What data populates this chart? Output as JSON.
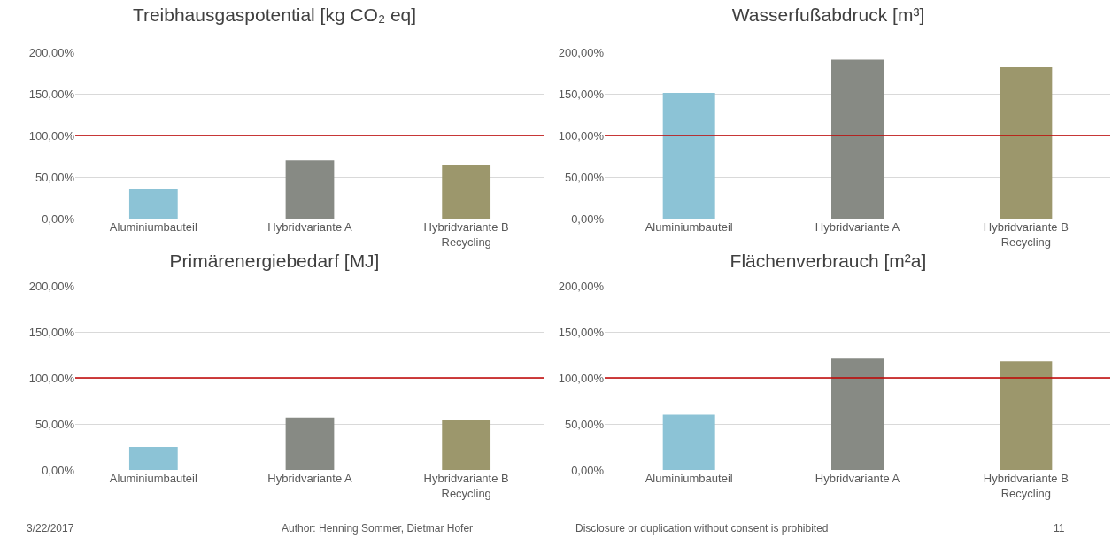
{
  "chart_data": [
    {
      "type": "bar",
      "title": "Treibhausgaspotential [kg CO₂ eq]",
      "categories": [
        "Aluminiumbauteil",
        "Hybridvariante A",
        "Hybridvariante B Recycling"
      ],
      "values": [
        35,
        70,
        65
      ],
      "colors": [
        "#8cc3d6",
        "#878a84",
        "#9c976c"
      ],
      "ylim": [
        0,
        200
      ],
      "yticks": [
        {
          "value": 0,
          "label": "0,00%"
        },
        {
          "value": 50,
          "label": "50,00%"
        },
        {
          "value": 100,
          "label": "100,00%"
        },
        {
          "value": 150,
          "label": "150,00%"
        },
        {
          "value": 200,
          "label": "200,00%"
        }
      ],
      "grid": "y",
      "ref_lines": [
        {
          "axis": "y",
          "value": 100,
          "color": "#c00000"
        }
      ]
    },
    {
      "type": "bar",
      "title": "Wasserfußabdruck [m³]",
      "categories": [
        "Aluminiumbauteil",
        "Hybridvariante A",
        "Hybridvariante B Recycling"
      ],
      "values": [
        151,
        191,
        182
      ],
      "colors": [
        "#8cc3d6",
        "#878a84",
        "#9c976c"
      ],
      "ylim": [
        0,
        200
      ],
      "yticks": [
        {
          "value": 0,
          "label": "0,00%"
        },
        {
          "value": 50,
          "label": "50,00%"
        },
        {
          "value": 100,
          "label": "100,00%"
        },
        {
          "value": 150,
          "label": "150,00%"
        },
        {
          "value": 200,
          "label": "200,00%"
        }
      ],
      "grid": "y",
      "ref_lines": [
        {
          "axis": "y",
          "value": 100,
          "color": "#c00000"
        }
      ]
    },
    {
      "type": "bar",
      "title": "Primärenergiebedarf [MJ]",
      "categories": [
        "Aluminiumbauteil",
        "Hybridvariante A",
        "Hybridvariante B Recycling"
      ],
      "values": [
        25,
        57,
        54
      ],
      "colors": [
        "#8cc3d6",
        "#878a84",
        "#9c976c"
      ],
      "ylim": [
        0,
        200
      ],
      "yticks": [
        {
          "value": 0,
          "label": "0,00%"
        },
        {
          "value": 50,
          "label": "50,00%"
        },
        {
          "value": 100,
          "label": "100,00%"
        },
        {
          "value": 150,
          "label": "150,00%"
        },
        {
          "value": 200,
          "label": "200,00%"
        }
      ],
      "grid": "y",
      "ref_lines": [
        {
          "axis": "y",
          "value": 100,
          "color": "#c00000"
        }
      ]
    },
    {
      "type": "bar",
      "title": "Flächenverbrauch [m²a]",
      "categories": [
        "Aluminiumbauteil",
        "Hybridvariante A",
        "Hybridvariante B Recycling"
      ],
      "values": [
        60,
        121,
        118
      ],
      "colors": [
        "#8cc3d6",
        "#878a84",
        "#9c976c"
      ],
      "ylim": [
        0,
        200
      ],
      "yticks": [
        {
          "value": 0,
          "label": "0,00%"
        },
        {
          "value": 50,
          "label": "50,00%"
        },
        {
          "value": 100,
          "label": "100,00%"
        },
        {
          "value": 150,
          "label": "150,00%"
        },
        {
          "value": 200,
          "label": "200,00%"
        }
      ],
      "grid": "y",
      "ref_lines": [
        {
          "axis": "y",
          "value": 100,
          "color": "#c00000"
        }
      ]
    },
    {
      "type": "other",
      "annotations": [
        "3/22/2017",
        "Author: Henning Sommer, Dietmar Hofer",
        "Disclosure or duplication without consent is prohibited",
        "11"
      ]
    }
  ]
}
